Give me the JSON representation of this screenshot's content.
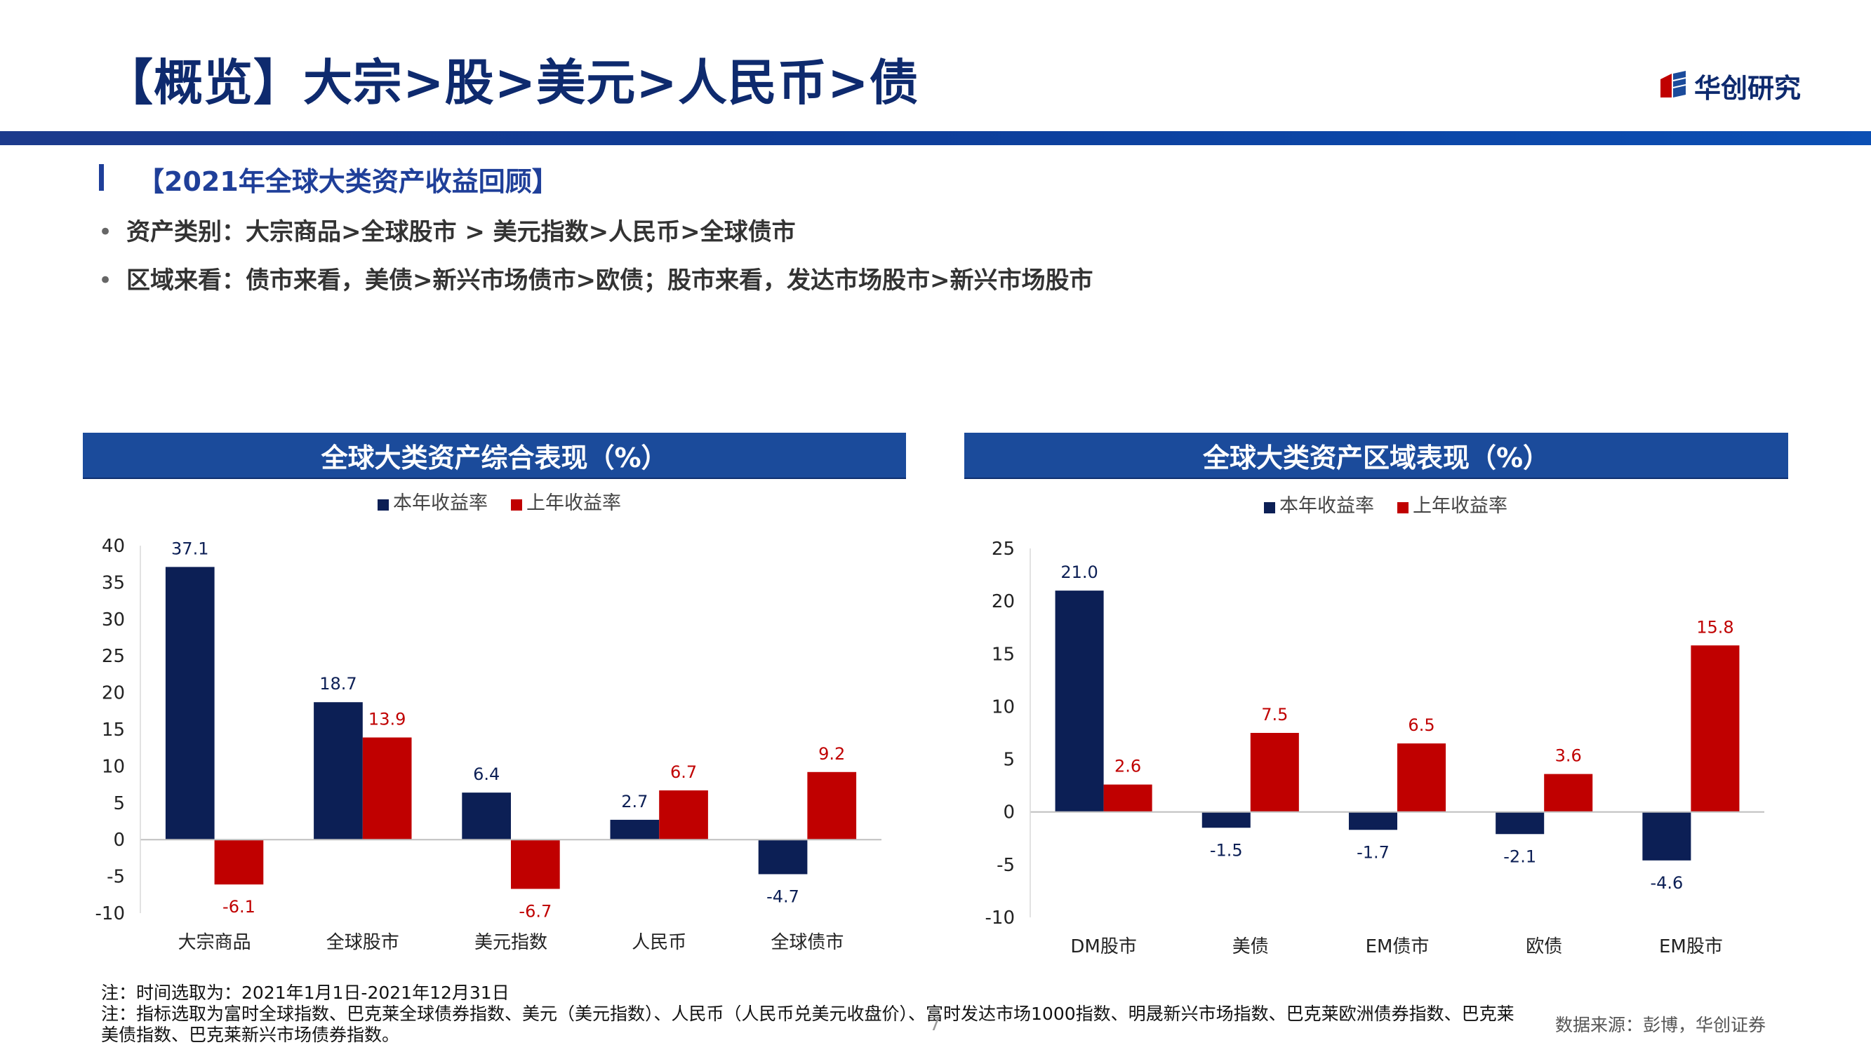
{
  "header": {
    "title": "【概览】大宗>股>美元>人民币>债",
    "logo_text": "华创研究"
  },
  "section": {
    "heading": "【2021年全球大类资产收益回顾】",
    "bullets": [
      "资产类别：大宗商品>全球股市 > 美元指数>人民币>全球债市",
      "区域来看：债市来看，美债>新兴市场债市>欧债；股市来看，发达市场股市>新兴市场股市"
    ],
    "bullet_marker": "•"
  },
  "panels": {
    "left_title": "全球大类资产综合表现（%）",
    "right_title": "全球大类资产区域表现（%）"
  },
  "colors": {
    "current": "#0c1f55",
    "previous": "#c00000",
    "header_blue": "#1b4b9b",
    "title_navy": "#0e2a6e"
  },
  "chart_data": [
    {
      "type": "bar",
      "categories": [
        "大宗商品",
        "全球股市",
        "美元指数",
        "人民币",
        "全球债市"
      ],
      "series": [
        {
          "name": "本年收益率",
          "values": [
            37.1,
            18.7,
            6.4,
            2.7,
            -4.7
          ]
        },
        {
          "name": "上年收益率",
          "values": [
            -6.1,
            13.9,
            -6.7,
            6.7,
            9.2
          ]
        }
      ],
      "ylim": [
        -10,
        40
      ],
      "yticks": [
        40,
        35,
        30,
        25,
        20,
        15,
        10,
        5,
        0,
        -5,
        -10
      ],
      "label_decimals": 1,
      "legend_position": "top-center",
      "grid": false
    },
    {
      "type": "bar",
      "categories": [
        "DM股市",
        "美债",
        "EM债市",
        "欧债",
        "EM股市"
      ],
      "series": [
        {
          "name": "本年收益率",
          "values": [
            21.0,
            -1.5,
            -1.7,
            -2.1,
            -4.6
          ]
        },
        {
          "name": "上年收益率",
          "values": [
            2.6,
            7.5,
            6.5,
            3.6,
            15.8
          ]
        }
      ],
      "ylim": [
        -10,
        25
      ],
      "yticks": [
        25,
        20,
        15,
        10,
        5,
        0,
        -5,
        -10
      ],
      "label_decimals": 1,
      "legend_position": "top-center",
      "grid": false
    }
  ],
  "footer": {
    "note_1": "注：时间选取为：2021年1月1日-2021年12月31日",
    "note_2": "注：指标选取为富时全球指数、巴克莱全球债券指数、美元（美元指数）、人民币（人民币兑美元收盘价）、富时发达市场1000指数、明晟新兴市场指数、巴克莱欧洲债券指数、巴克莱",
    "note_3": "美债指数、巴克莱新兴市场债券指数。",
    "page_number": "7",
    "source": "数据来源：彭博，华创证券"
  }
}
